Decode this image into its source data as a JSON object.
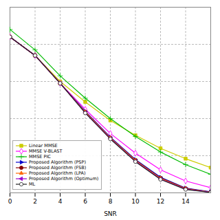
{
  "chart_data": {
    "type": "line",
    "x": [
      0,
      2,
      4,
      6,
      8,
      10,
      12,
      14,
      16
    ],
    "series": [
      {
        "name": "Linear MMSE",
        "color": "#cccc00",
        "marker": "square",
        "values": [
          0.42,
          0.37,
          0.3,
          0.245,
          0.195,
          0.155,
          0.12,
          0.092,
          0.068
        ]
      },
      {
        "name": "MMSE V-BLAST",
        "color": "#ff00ff",
        "marker": "diamond-open",
        "values": [
          0.42,
          0.37,
          0.295,
          0.225,
          0.16,
          0.107,
          0.062,
          0.032,
          0.014
        ]
      },
      {
        "name": "MMSE PIC",
        "color": "#00bb00",
        "marker": "plus",
        "values": [
          0.44,
          0.385,
          0.315,
          0.255,
          0.2,
          0.152,
          0.11,
          0.076,
          0.05
        ]
      },
      {
        "name": "Proposed Algorithm (PSP)",
        "color": "#0000cc",
        "marker": "triangle-right",
        "values": [
          0.42,
          0.37,
          0.295,
          0.22,
          0.15,
          0.09,
          0.042,
          0.013,
          0.003
        ]
      },
      {
        "name": "Proposed Algorithm (FSB)",
        "color": "#880000",
        "marker": "circle",
        "values": [
          0.42,
          0.37,
          0.295,
          0.218,
          0.148,
          0.088,
          0.04,
          0.012,
          0.002
        ]
      },
      {
        "name": "Proposed Algorithm (LPA)",
        "color": "#ff6600",
        "marker": "triangle-up",
        "values": [
          0.42,
          0.37,
          0.295,
          0.218,
          0.148,
          0.087,
          0.039,
          0.011,
          0.0018
        ]
      },
      {
        "name": "Proposed Algorithm (Optimum)",
        "color": "#9900cc",
        "marker": "triangle-left",
        "values": [
          0.42,
          0.37,
          0.295,
          0.216,
          0.146,
          0.085,
          0.037,
          0.01,
          0.0015
        ]
      },
      {
        "name": "ML",
        "color": "#222222",
        "marker": "circle-open",
        "values": [
          0.42,
          0.37,
          0.295,
          0.215,
          0.145,
          0.084,
          0.036,
          0.009,
          0.0012
        ]
      }
    ],
    "xlabel": "SNR",
    "xlim": [
      0,
      16
    ],
    "ylim": [
      0.0,
      0.5
    ],
    "xticks": [
      0,
      2,
      4,
      6,
      8,
      10,
      12,
      14
    ],
    "yticks": [
      0,
      0.1,
      0.2,
      0.3,
      0.4,
      0.5
    ],
    "grid": true,
    "legend": "lower left",
    "tick_labels": "x"
  }
}
